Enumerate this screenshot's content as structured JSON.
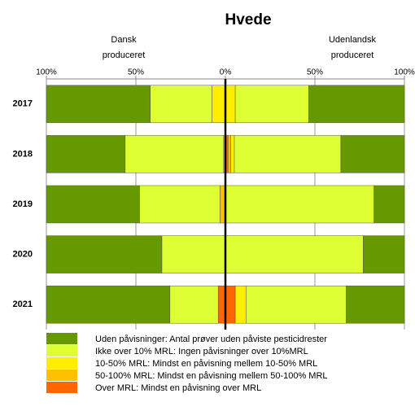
{
  "chart_data": {
    "type": "diverging-bar",
    "title": "Hvede",
    "left_label": [
      "Dansk",
      "produceret"
    ],
    "right_label": [
      "Udenlandsk",
      "produceret"
    ],
    "categories": [
      "2017",
      "2018",
      "2019",
      "2020",
      "2021"
    ],
    "xlim": [
      -100,
      100
    ],
    "xticks": [
      {
        "value": -100,
        "label": "100%"
      },
      {
        "value": -50,
        "label": "50%"
      },
      {
        "value": 0,
        "label": "0%"
      },
      {
        "value": 50,
        "label": "50%"
      },
      {
        "value": 100,
        "label": "100%"
      }
    ],
    "grid": true,
    "series": [
      {
        "name": "Over MRL:  Mindst en påvisning over MRL",
        "color": "#ff6600",
        "dansk": [
          0,
          0,
          0,
          0,
          4
        ],
        "udenlandsk": [
          0,
          1.5,
          0,
          0,
          5.5
        ]
      },
      {
        "name": "50-100% MRL: Mindst en påvisning mellem 50-100% MRL",
        "color": "#ffc000",
        "dansk": [
          0,
          1,
          3,
          0,
          0
        ],
        "udenlandsk": [
          0,
          1.5,
          0,
          0,
          0
        ]
      },
      {
        "name": "10-50% MRL: Mindst en påvisning mellem 10-50% MRL",
        "color": "#ffee00",
        "dansk": [
          7.5,
          0,
          0,
          0,
          0
        ],
        "udenlandsk": [
          5.5,
          2,
          0,
          0,
          6
        ]
      },
      {
        "name": "Ikke over 10% MRL: Ingen påvisninger over 10%MRL",
        "color": "#ddff33",
        "dansk": [
          34.5,
          55,
          45,
          35.5,
          27
        ],
        "udenlandsk": [
          41,
          59.5,
          83,
          77,
          56
        ]
      },
      {
        "name": "Uden påvisninger: Antal prøver uden påviste pesticidrester",
        "color": "#669900",
        "dansk": [
          58,
          44,
          52,
          64.5,
          69
        ],
        "udenlandsk": [
          53.5,
          35.5,
          17,
          23,
          32.5
        ]
      }
    ]
  }
}
